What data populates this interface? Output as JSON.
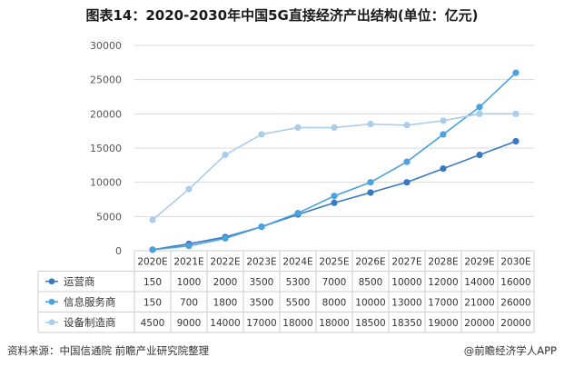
{
  "title": "图表14：2020-2030年中国5G直接经济产出结构(单位：亿元)",
  "source": "资料来源：中国信通院 前瞻产业研究院整理",
  "brand": "@前瞻经济学人APP",
  "chart_data": {
    "type": "line",
    "categories": [
      "2020E",
      "2021E",
      "2022E",
      "2023E",
      "2024E",
      "2025E",
      "2026E",
      "2027E",
      "2028E",
      "2029E",
      "2030E"
    ],
    "ylim": [
      0,
      30000
    ],
    "yticks": [
      0,
      5000,
      10000,
      15000,
      20000,
      25000,
      30000
    ],
    "grid": true,
    "legend": "data-table",
    "series": [
      {
        "name": "运营商",
        "color": "#3a78c4",
        "values": [
          150,
          1000,
          2000,
          3500,
          5300,
          7000,
          8500,
          10000,
          12000,
          14000,
          16000
        ]
      },
      {
        "name": "信息服务商",
        "color": "#4aa3df",
        "values": [
          150,
          700,
          1800,
          3500,
          5500,
          8000,
          10000,
          13000,
          17000,
          21000,
          26000
        ]
      },
      {
        "name": "设备制造商",
        "color": "#a9cdeb",
        "values": [
          4500,
          9000,
          14000,
          17000,
          18000,
          18000,
          18500,
          18350,
          19000,
          20000,
          20000
        ]
      }
    ]
  }
}
